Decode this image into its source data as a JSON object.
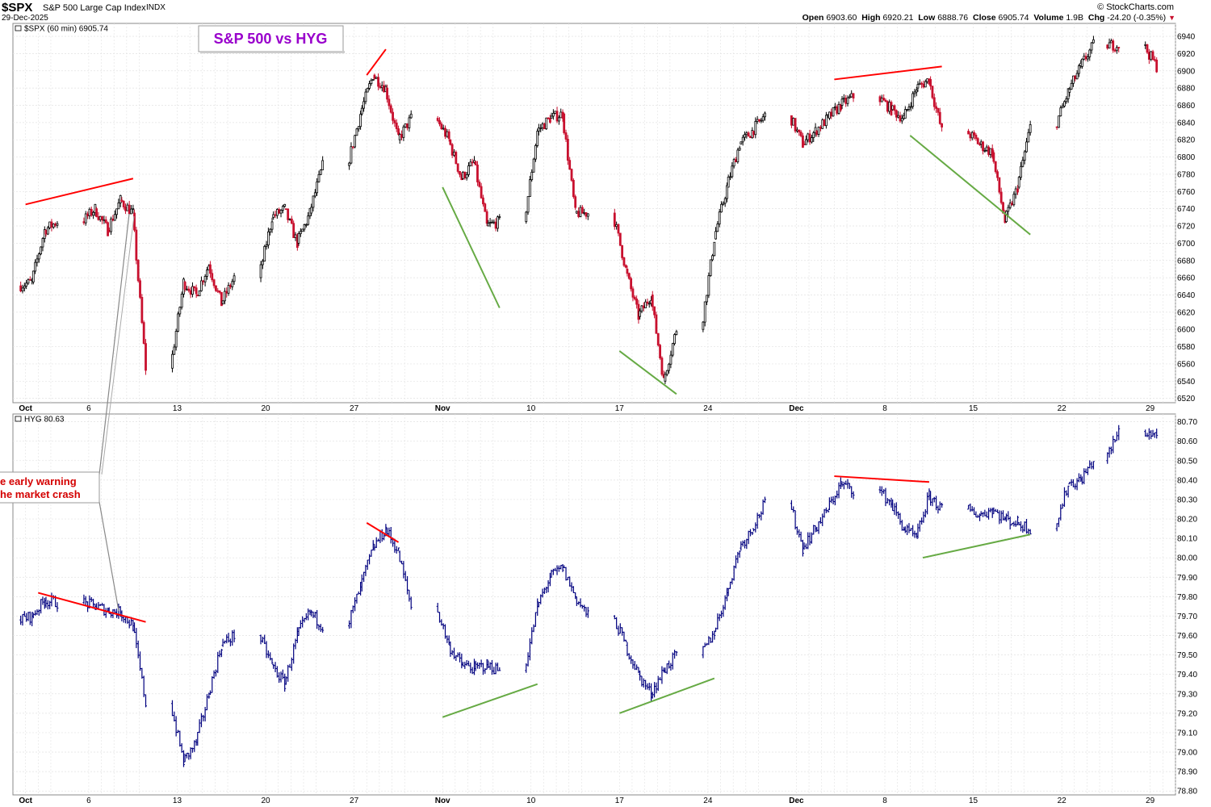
{
  "header": {
    "symbol": "$SPX",
    "name": "S&P 500 Large Cap Index",
    "exchange": "INDX",
    "date": "29-Dec-2025",
    "site": "© StockCharts.com",
    "open_label": "Open",
    "open": "6903.60",
    "high_label": "High",
    "high": "6920.21",
    "low_label": "Low",
    "low": "6888.76",
    "close_label": "Close",
    "close": "6905.74",
    "volume_label": "Volume",
    "volume": "1.9B",
    "chg_label": "Chg",
    "chg": "-24.20 (-0.35%)"
  },
  "colors": {
    "up": "#000000",
    "down": "#c8102e",
    "hyg": "#00007f",
    "grid": "#e2e2e2",
    "title": "#9900cc",
    "bear_line": "#ff0000",
    "bull_line": "#66aa44",
    "note": "#d40000"
  },
  "chart_data": [
    {
      "type": "candlestick",
      "panel": "price",
      "legend": "$SPX (60 min) 6905.74",
      "title": "S&P 500 vs HYG",
      "ylim": [
        6515,
        6955
      ],
      "yticks": [
        6520,
        6540,
        6560,
        6580,
        6600,
        6620,
        6640,
        6660,
        6680,
        6700,
        6720,
        6740,
        6760,
        6780,
        6800,
        6820,
        6840,
        6860,
        6880,
        6900,
        6920,
        6940
      ],
      "xlabels": [
        "Oct",
        "6",
        "13",
        "20",
        "27",
        "Nov",
        "10",
        "17",
        "24",
        "Dec",
        "8",
        "15",
        "22",
        "29"
      ],
      "series": [
        {
          "x": "2025-10-01",
          "y": 6655
        },
        {
          "x": "2025-10-02",
          "y": 6715
        },
        {
          "x": "2025-10-03",
          "y": 6725
        },
        {
          "x": "2025-10-06",
          "y": 6740
        },
        {
          "x": "2025-10-07",
          "y": 6715
        },
        {
          "x": "2025-10-08",
          "y": 6750
        },
        {
          "x": "2025-10-09",
          "y": 6735
        },
        {
          "x": "2025-10-10",
          "y": 6555
        },
        {
          "x": "2025-10-13",
          "y": 6655
        },
        {
          "x": "2025-10-14",
          "y": 6640
        },
        {
          "x": "2025-10-15",
          "y": 6675
        },
        {
          "x": "2025-10-16",
          "y": 6630
        },
        {
          "x": "2025-10-17",
          "y": 6660
        },
        {
          "x": "2025-10-20",
          "y": 6730
        },
        {
          "x": "2025-10-21",
          "y": 6740
        },
        {
          "x": "2025-10-22",
          "y": 6700
        },
        {
          "x": "2025-10-23",
          "y": 6735
        },
        {
          "x": "2025-10-24",
          "y": 6790
        },
        {
          "x": "2025-10-27",
          "y": 6850
        },
        {
          "x": "2025-10-28",
          "y": 6895
        },
        {
          "x": "2025-10-29",
          "y": 6880
        },
        {
          "x": "2025-10-30",
          "y": 6820
        },
        {
          "x": "2025-10-31",
          "y": 6845
        },
        {
          "x": "2025-11-03",
          "y": 6820
        },
        {
          "x": "2025-11-04",
          "y": 6775
        },
        {
          "x": "2025-11-05",
          "y": 6795
        },
        {
          "x": "2025-11-06",
          "y": 6720
        },
        {
          "x": "2025-11-07",
          "y": 6725
        },
        {
          "x": "2025-11-10",
          "y": 6830
        },
        {
          "x": "2025-11-11",
          "y": 6845
        },
        {
          "x": "2025-11-12",
          "y": 6850
        },
        {
          "x": "2025-11-13",
          "y": 6735
        },
        {
          "x": "2025-11-14",
          "y": 6735
        },
        {
          "x": "2025-11-17",
          "y": 6670
        },
        {
          "x": "2025-11-18",
          "y": 6615
        },
        {
          "x": "2025-11-19",
          "y": 6640
        },
        {
          "x": "2025-11-20",
          "y": 6540
        },
        {
          "x": "2025-11-21",
          "y": 6600
        },
        {
          "x": "2025-11-24",
          "y": 6705
        },
        {
          "x": "2025-11-25",
          "y": 6765
        },
        {
          "x": "2025-11-26",
          "y": 6815
        },
        {
          "x": "2025-11-27",
          "y": 6830
        },
        {
          "x": "2025-11-28",
          "y": 6848
        },
        {
          "x": "2025-12-01",
          "y": 6815
        },
        {
          "x": "2025-12-02",
          "y": 6830
        },
        {
          "x": "2025-12-03",
          "y": 6845
        },
        {
          "x": "2025-12-04",
          "y": 6860
        },
        {
          "x": "2025-12-05",
          "y": 6870
        },
        {
          "x": "2025-12-08",
          "y": 6855
        },
        {
          "x": "2025-12-09",
          "y": 6845
        },
        {
          "x": "2025-12-10",
          "y": 6880
        },
        {
          "x": "2025-12-11",
          "y": 6890
        },
        {
          "x": "2025-12-12",
          "y": 6830
        },
        {
          "x": "2025-12-15",
          "y": 6815
        },
        {
          "x": "2025-12-16",
          "y": 6805
        },
        {
          "x": "2025-12-17",
          "y": 6725
        },
        {
          "x": "2025-12-18",
          "y": 6765
        },
        {
          "x": "2025-12-19",
          "y": 6835
        },
        {
          "x": "2025-12-22",
          "y": 6875
        },
        {
          "x": "2025-12-23",
          "y": 6905
        },
        {
          "x": "2025-12-24",
          "y": 6930
        },
        {
          "x": "2025-12-26",
          "y": 6930
        },
        {
          "x": "2025-12-29",
          "y": 6905
        }
      ],
      "trendlines": [
        {
          "color": "bear_line",
          "from": [
            "2025-10-01",
            6745
          ],
          "to": [
            "2025-10-09",
            6775
          ]
        },
        {
          "color": "bear_line",
          "from": [
            "2025-10-28",
            6895
          ],
          "to": [
            "2025-10-29",
            6925
          ]
        },
        {
          "color": "bull_line",
          "from": [
            "2025-11-03",
            6765
          ],
          "to": [
            "2025-11-07",
            6625
          ]
        },
        {
          "color": "bull_line",
          "from": [
            "2025-11-17",
            6575
          ],
          "to": [
            "2025-11-21",
            6525
          ]
        },
        {
          "color": "bear_line",
          "from": [
            "2025-12-04",
            6890
          ],
          "to": [
            "2025-12-12",
            6905
          ]
        },
        {
          "color": "bull_line",
          "from": [
            "2025-12-10",
            6825
          ],
          "to": [
            "2025-12-19",
            6710
          ]
        }
      ]
    },
    {
      "type": "ohlc",
      "panel": "hyg",
      "legend": "HYG 80.63",
      "ylim": [
        78.78,
        80.74
      ],
      "yticks": [
        78.8,
        78.9,
        79.0,
        79.1,
        79.2,
        79.3,
        79.4,
        79.5,
        79.6,
        79.7,
        79.8,
        79.9,
        80.0,
        80.1,
        80.2,
        80.3,
        80.4,
        80.5,
        80.6,
        80.7
      ],
      "xlabels": [
        "Oct",
        "6",
        "13",
        "20",
        "27",
        "Nov",
        "10",
        "17",
        "24",
        "Dec",
        "8",
        "15",
        "22",
        "29"
      ],
      "series": [
        {
          "x": "2025-10-01",
          "y": 79.7
        },
        {
          "x": "2025-10-02",
          "y": 79.78
        },
        {
          "x": "2025-10-03",
          "y": 79.77
        },
        {
          "x": "2025-10-06",
          "y": 79.75
        },
        {
          "x": "2025-10-07",
          "y": 79.73
        },
        {
          "x": "2025-10-08",
          "y": 79.72
        },
        {
          "x": "2025-10-09",
          "y": 79.65
        },
        {
          "x": "2025-10-10",
          "y": 79.25
        },
        {
          "x": "2025-10-13",
          "y": 78.95
        },
        {
          "x": "2025-10-14",
          "y": 79.05
        },
        {
          "x": "2025-10-15",
          "y": 79.3
        },
        {
          "x": "2025-10-16",
          "y": 79.55
        },
        {
          "x": "2025-10-17",
          "y": 79.6
        },
        {
          "x": "2025-10-20",
          "y": 79.45
        },
        {
          "x": "2025-10-21",
          "y": 79.35
        },
        {
          "x": "2025-10-22",
          "y": 79.6
        },
        {
          "x": "2025-10-23",
          "y": 79.72
        },
        {
          "x": "2025-10-24",
          "y": 79.65
        },
        {
          "x": "2025-10-27",
          "y": 79.85
        },
        {
          "x": "2025-10-28",
          "y": 80.05
        },
        {
          "x": "2025-10-29",
          "y": 80.15
        },
        {
          "x": "2025-10-30",
          "y": 80.03
        },
        {
          "x": "2025-10-31",
          "y": 79.75
        },
        {
          "x": "2025-11-03",
          "y": 79.55
        },
        {
          "x": "2025-11-04",
          "y": 79.45
        },
        {
          "x": "2025-11-05",
          "y": 79.43
        },
        {
          "x": "2025-11-06",
          "y": 79.45
        },
        {
          "x": "2025-11-07",
          "y": 79.42
        },
        {
          "x": "2025-11-10",
          "y": 79.75
        },
        {
          "x": "2025-11-11",
          "y": 79.9
        },
        {
          "x": "2025-11-12",
          "y": 79.95
        },
        {
          "x": "2025-11-13",
          "y": 79.8
        },
        {
          "x": "2025-11-14",
          "y": 79.7
        },
        {
          "x": "2025-11-17",
          "y": 79.55
        },
        {
          "x": "2025-11-18",
          "y": 79.4
        },
        {
          "x": "2025-11-19",
          "y": 79.3
        },
        {
          "x": "2025-11-20",
          "y": 79.42
        },
        {
          "x": "2025-11-21",
          "y": 79.5
        },
        {
          "x": "2025-11-24",
          "y": 79.62
        },
        {
          "x": "2025-11-25",
          "y": 79.82
        },
        {
          "x": "2025-11-26",
          "y": 80.05
        },
        {
          "x": "2025-11-27",
          "y": 80.15
        },
        {
          "x": "2025-11-28",
          "y": 80.28
        },
        {
          "x": "2025-12-01",
          "y": 80.05
        },
        {
          "x": "2025-12-02",
          "y": 80.15
        },
        {
          "x": "2025-12-03",
          "y": 80.25
        },
        {
          "x": "2025-12-04",
          "y": 80.38
        },
        {
          "x": "2025-12-05",
          "y": 80.35
        },
        {
          "x": "2025-12-08",
          "y": 80.28
        },
        {
          "x": "2025-12-09",
          "y": 80.15
        },
        {
          "x": "2025-12-10",
          "y": 80.1
        },
        {
          "x": "2025-12-11",
          "y": 80.32
        },
        {
          "x": "2025-12-12",
          "y": 80.25
        },
        {
          "x": "2025-12-15",
          "y": 80.22
        },
        {
          "x": "2025-12-16",
          "y": 80.25
        },
        {
          "x": "2025-12-17",
          "y": 80.2
        },
        {
          "x": "2025-12-18",
          "y": 80.18
        },
        {
          "x": "2025-12-19",
          "y": 80.15
        },
        {
          "x": "2025-12-22",
          "y": 80.38
        },
        {
          "x": "2025-12-23",
          "y": 80.4
        },
        {
          "x": "2025-12-24",
          "y": 80.5
        },
        {
          "x": "2025-12-26",
          "y": 80.65
        },
        {
          "x": "2025-12-29",
          "y": 80.63
        }
      ],
      "trendlines": [
        {
          "color": "bear_line",
          "from": [
            "2025-10-02",
            79.82
          ],
          "to": [
            "2025-10-10",
            79.67
          ]
        },
        {
          "color": "bear_line",
          "from": [
            "2025-10-28",
            80.18
          ],
          "to": [
            "2025-10-30",
            80.08
          ]
        },
        {
          "color": "bull_line",
          "from": [
            "2025-11-03",
            79.18
          ],
          "to": [
            "2025-11-10",
            79.35
          ]
        },
        {
          "color": "bull_line",
          "from": [
            "2025-11-17",
            79.2
          ],
          "to": [
            "2025-11-24",
            79.38
          ]
        },
        {
          "color": "bear_line",
          "from": [
            "2025-12-04",
            80.42
          ],
          "to": [
            "2025-12-11",
            80.39
          ]
        },
        {
          "color": "bull_line",
          "from": [
            "2025-12-11",
            80.0
          ],
          "to": [
            "2025-12-19",
            80.12
          ]
        }
      ]
    }
  ],
  "annotation": {
    "line1": "e early warning",
    "line2": "he market crash"
  }
}
